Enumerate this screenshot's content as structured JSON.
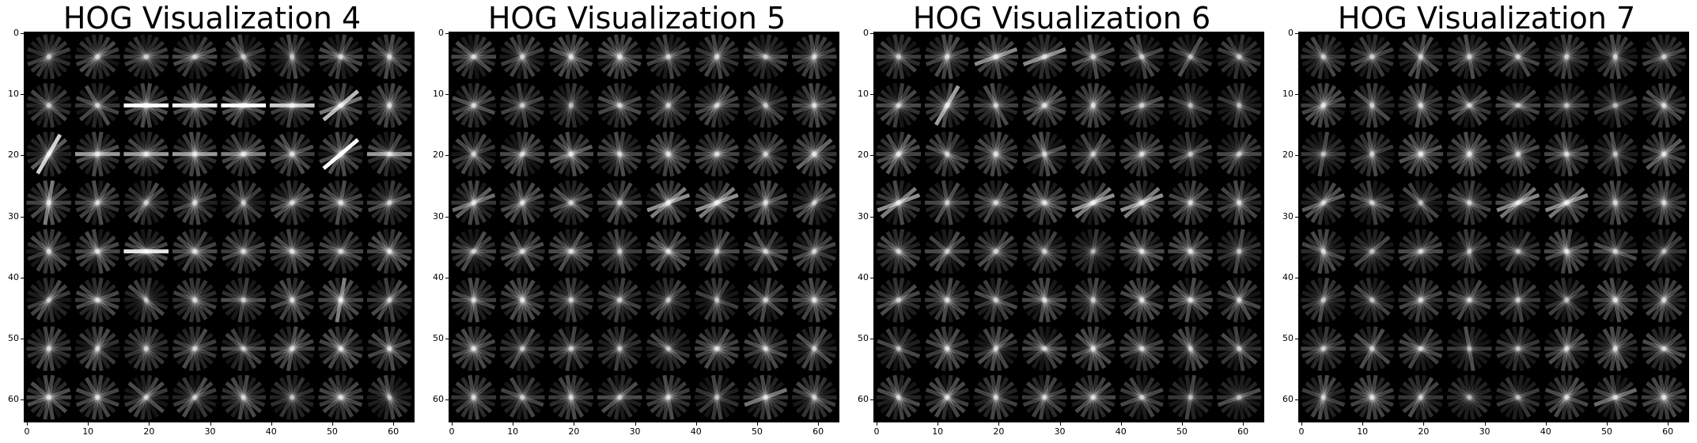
{
  "panels": [
    {
      "title": "HOG Visualization 4",
      "seed": 4,
      "bright": [
        [
          2,
          1,
          0,
          1.0
        ],
        [
          3,
          1,
          0,
          0.95
        ],
        [
          4,
          1,
          0,
          1.0
        ],
        [
          5,
          1,
          0,
          0.8
        ],
        [
          6,
          1,
          0.6,
          0.9
        ],
        [
          6,
          2,
          0.7,
          1.0
        ],
        [
          7,
          2,
          0,
          0.6
        ],
        [
          0,
          2,
          1.0,
          0.9
        ],
        [
          1,
          2,
          0,
          0.6
        ],
        [
          2,
          2,
          0,
          0.6
        ],
        [
          3,
          2,
          0,
          0.6
        ],
        [
          4,
          2,
          0,
          0.5
        ],
        [
          2,
          4,
          0,
          0.9
        ],
        [
          0,
          3,
          1.5,
          0.6
        ],
        [
          6,
          5,
          1.4,
          0.5
        ]
      ]
    },
    {
      "title": "HOG Visualization 5",
      "seed": 5,
      "bright": [
        [
          4,
          3,
          0.5,
          0.8
        ],
        [
          5,
          3,
          0.5,
          0.8
        ],
        [
          0,
          3,
          0.5,
          0.6
        ],
        [
          2,
          2,
          0.2,
          0.5
        ],
        [
          7,
          2,
          0.8,
          0.5
        ],
        [
          6,
          7,
          0.3,
          0.5
        ]
      ]
    },
    {
      "title": "HOG Visualization 6",
      "seed": 6,
      "bright": [
        [
          1,
          1,
          1.1,
          0.7
        ],
        [
          2,
          0,
          0.4,
          0.6
        ],
        [
          3,
          0,
          0.3,
          0.6
        ],
        [
          0,
          2,
          0.9,
          0.5
        ],
        [
          0,
          3,
          0.5,
          0.8
        ],
        [
          4,
          3,
          0.5,
          0.8
        ],
        [
          5,
          3,
          0.5,
          0.8
        ]
      ]
    },
    {
      "title": "HOG Visualization 7",
      "seed": 7,
      "bright": [
        [
          4,
          3,
          0.5,
          0.75
        ],
        [
          5,
          3,
          0.5,
          0.75
        ],
        [
          0,
          3,
          0.5,
          0.5
        ],
        [
          2,
          2,
          0.2,
          0.45
        ],
        [
          7,
          2,
          0.8,
          0.45
        ],
        [
          6,
          7,
          0.3,
          0.45
        ]
      ]
    }
  ],
  "axis": {
    "x_ticks": [
      "0",
      "10",
      "20",
      "30",
      "40",
      "50",
      "60"
    ],
    "y_ticks": [
      "0",
      "10",
      "20",
      "30",
      "40",
      "50",
      "60"
    ],
    "x_range": [
      0,
      64
    ],
    "y_range": [
      0,
      64
    ]
  },
  "colors": {
    "background": "#000000",
    "gradient": "#ffffff"
  }
}
